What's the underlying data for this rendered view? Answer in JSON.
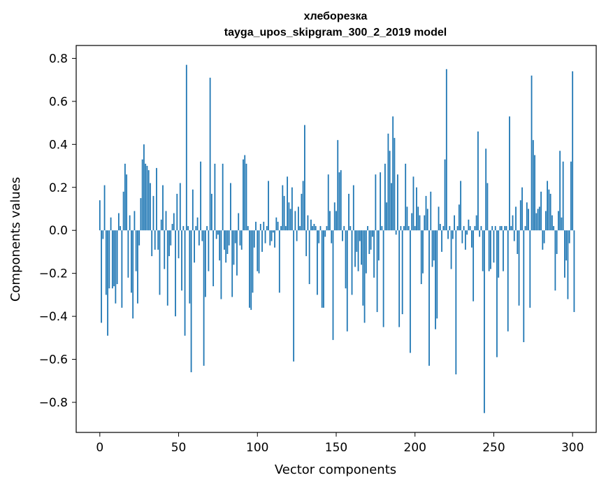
{
  "chart_data": {
    "type": "bar",
    "title": "хлеборезка",
    "subtitle": "tayga_upos_skipgram_300_2_2019 model",
    "xlabel": "Vector components",
    "ylabel": "Components values",
    "xlim": [
      -15,
      315
    ],
    "ylim": [
      -0.94,
      0.86
    ],
    "xticks": [
      0,
      50,
      100,
      150,
      200,
      250,
      300
    ],
    "xtick_labels": [
      "0",
      "50",
      "100",
      "150",
      "200",
      "250",
      "300"
    ],
    "yticks": [
      -0.8,
      -0.6,
      -0.4,
      -0.2,
      0.0,
      0.2,
      0.4,
      0.6,
      0.8
    ],
    "ytick_labels": [
      "−0.8",
      "−0.6",
      "−0.4",
      "−0.2",
      "0.0",
      "0.2",
      "0.4",
      "0.6",
      "0.8"
    ],
    "grid": false,
    "bar_color": "#1f77b4",
    "values": [
      0.14,
      -0.43,
      -0.04,
      0.21,
      -0.3,
      -0.49,
      -0.27,
      0.06,
      -0.27,
      -0.26,
      -0.34,
      -0.25,
      0.08,
      0.02,
      -0.36,
      0.18,
      0.31,
      0.26,
      -0.22,
      0.07,
      -0.29,
      -0.41,
      0.09,
      -0.19,
      -0.34,
      -0.07,
      0.15,
      0.33,
      0.4,
      0.31,
      0.3,
      0.28,
      0.22,
      -0.12,
      0.16,
      -0.09,
      0.29,
      -0.09,
      -0.3,
      0.05,
      0.21,
      -0.18,
      0.09,
      -0.35,
      -0.12,
      -0.07,
      0.03,
      0.08,
      -0.4,
      0.17,
      -0.13,
      0.22,
      -0.28,
      0.02,
      -0.49,
      0.77,
      0.02,
      -0.34,
      -0.66,
      0.19,
      -0.15,
      0.02,
      0.06,
      -0.07,
      0.32,
      -0.05,
      -0.63,
      -0.31,
      0.02,
      -0.19,
      0.71,
      0.17,
      -0.26,
      0.31,
      -0.04,
      -0.02,
      -0.14,
      -0.32,
      0.31,
      -0.09,
      -0.15,
      -0.11,
      -0.07,
      0.22,
      -0.31,
      -0.16,
      -0.06,
      -0.21,
      0.08,
      -0.07,
      -0.09,
      0.33,
      0.35,
      0.31,
      0.02,
      -0.36,
      -0.37,
      -0.29,
      -0.08,
      0.04,
      -0.19,
      -0.2,
      0.03,
      -0.1,
      0.04,
      -0.06,
      0.02,
      0.23,
      -0.07,
      -0.05,
      -0.01,
      -0.08,
      0.06,
      0.04,
      -0.29,
      0.02,
      0.21,
      0.16,
      0.02,
      0.25,
      0.13,
      0.1,
      0.2,
      -0.61,
      0.09,
      -0.05,
      0.11,
      0.02,
      0.17,
      0.23,
      0.49,
      -0.12,
      0.07,
      -0.25,
      0.05,
      0.02,
      0.03,
      0.02,
      -0.3,
      -0.06,
      0.02,
      -0.36,
      -0.36,
      -0.03,
      0.02,
      0.26,
      0.09,
      -0.06,
      -0.51,
      0.13,
      0.09,
      0.42,
      0.27,
      0.28,
      -0.05,
      0.02,
      -0.27,
      -0.47,
      0.17,
      0.02,
      -0.3,
      0.21,
      -0.17,
      -0.1,
      -0.19,
      -0.05,
      -0.16,
      -0.35,
      -0.43,
      -0.2,
      0.02,
      -0.11,
      -0.09,
      -0.03,
      -0.22,
      0.26,
      -0.38,
      -0.14,
      0.27,
      0.02,
      -0.45,
      0.31,
      0.13,
      0.45,
      0.37,
      0.22,
      0.53,
      0.43,
      -0.02,
      0.26,
      -0.45,
      0.02,
      -0.39,
      0.02,
      0.31,
      0.11,
      0.02,
      -0.57,
      0.08,
      0.25,
      0.02,
      0.2,
      0.11,
      0.07,
      -0.25,
      -0.2,
      0.07,
      0.16,
      0.1,
      -0.63,
      0.18,
      -0.17,
      -0.14,
      -0.46,
      -0.41,
      0.11,
      0.03,
      -0.1,
      0.02,
      0.33,
      0.75,
      -0.04,
      0.02,
      -0.18,
      -0.04,
      0.07,
      -0.67,
      0.02,
      0.12,
      0.23,
      -0.06,
      0.02,
      -0.09,
      -0.02,
      0.05,
      0.02,
      -0.08,
      -0.33,
      0.02,
      0.07,
      0.46,
      -0.03,
      0.02,
      -0.19,
      -0.85,
      0.38,
      0.22,
      -0.19,
      -0.18,
      0.02,
      -0.15,
      0.02,
      -0.59,
      -0.22,
      0.02,
      0.02,
      -0.19,
      0.02,
      0.02,
      -0.47,
      0.53,
      0.02,
      0.07,
      -0.05,
      0.11,
      -0.11,
      -0.35,
      0.14,
      0.2,
      -0.52,
      0.02,
      0.13,
      0.1,
      -0.36,
      0.72,
      0.42,
      0.35,
      0.08,
      0.1,
      0.11,
      0.18,
      -0.09,
      -0.06,
      0.09,
      0.23,
      0.19,
      0.17,
      0.07,
      0.02,
      -0.28,
      -0.11,
      0.09,
      0.37,
      0.06,
      0.32,
      -0.22,
      -0.14,
      -0.32,
      -0.06,
      0.32,
      0.74,
      -0.38
    ]
  }
}
